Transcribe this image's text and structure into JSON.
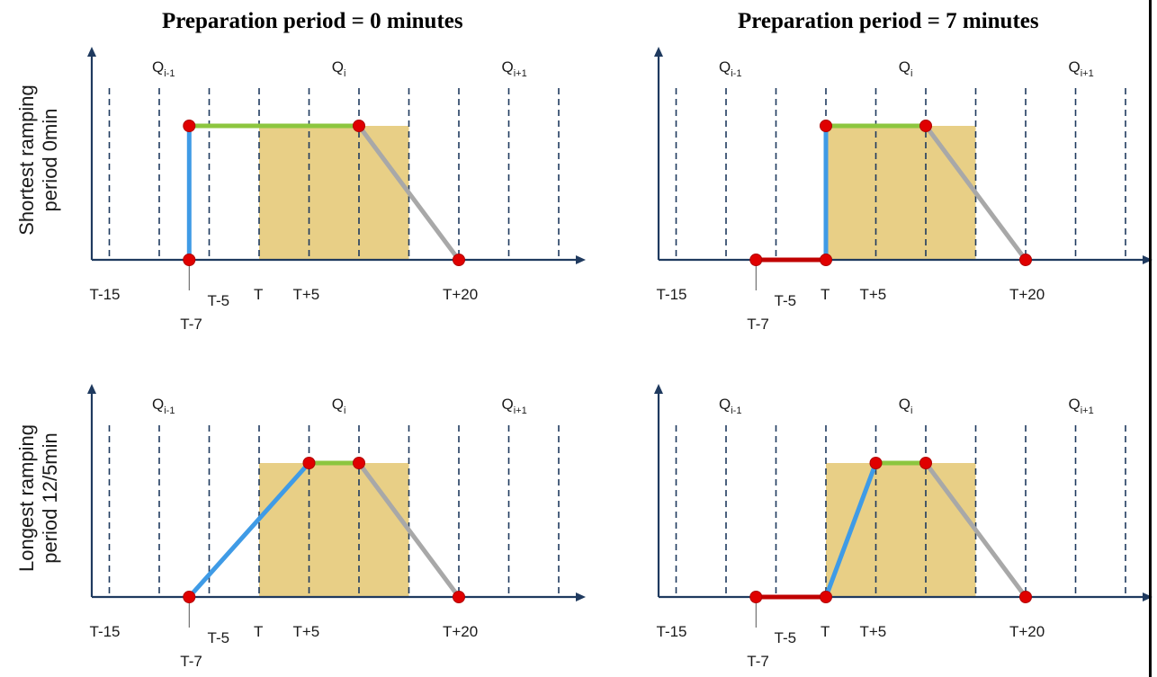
{
  "titles": {
    "left": "Preparation period = 0 minutes",
    "right": "Preparation period = 7 minutes"
  },
  "row_labels": {
    "top": [
      "Shortest ramping",
      "period 0min"
    ],
    "bottom": [
      "Longest ramping",
      "period 12/5min"
    ]
  },
  "quarters": [
    {
      "base": "Q",
      "sub": "i-1"
    },
    {
      "base": "Q",
      "sub": "i"
    },
    {
      "base": "Q",
      "sub": "i+1"
    }
  ],
  "time_labels": [
    "T-15",
    "T-7",
    "T-5",
    "T",
    "T+5",
    "T+20"
  ],
  "colors": {
    "axis": "#1f3a5f",
    "grid": "#1f3a5f",
    "delivery_block": "#e8cf86",
    "ramp_up": "#3f9be6",
    "plateau": "#8cc63f",
    "ramp_down": "#a8a8a8",
    "preparation": "#c00000",
    "point": "#e00000"
  },
  "panels": [
    {
      "id": "top-left",
      "preparation_min": 0,
      "ramp_up": [
        [
          -7,
          0
        ],
        [
          -7,
          1
        ]
      ],
      "plateau": [
        [
          -7,
          1
        ],
        [
          10,
          1
        ]
      ],
      "ramp_down": [
        [
          10,
          1
        ],
        [
          20,
          0
        ]
      ],
      "preparation": [],
      "points": [
        [
          -7,
          0
        ],
        [
          -7,
          1
        ],
        [
          10,
          1
        ],
        [
          20,
          0
        ]
      ]
    },
    {
      "id": "top-right",
      "preparation_min": 7,
      "ramp_up": [
        [
          0,
          0
        ],
        [
          0,
          1
        ]
      ],
      "plateau": [
        [
          0,
          1
        ],
        [
          10,
          1
        ]
      ],
      "ramp_down": [
        [
          10,
          1
        ],
        [
          20,
          0
        ]
      ],
      "preparation": [
        [
          -7,
          0
        ],
        [
          0,
          0
        ]
      ],
      "points": [
        [
          -7,
          0
        ],
        [
          0,
          0
        ],
        [
          0,
          1
        ],
        [
          10,
          1
        ],
        [
          20,
          0
        ]
      ]
    },
    {
      "id": "bottom-left",
      "preparation_min": 0,
      "ramp_up": [
        [
          -7,
          0
        ],
        [
          5,
          1
        ]
      ],
      "plateau": [
        [
          5,
          1
        ],
        [
          10,
          1
        ]
      ],
      "ramp_down": [
        [
          10,
          1
        ],
        [
          20,
          0
        ]
      ],
      "preparation": [],
      "points": [
        [
          -7,
          0
        ],
        [
          5,
          1
        ],
        [
          10,
          1
        ],
        [
          20,
          0
        ]
      ]
    },
    {
      "id": "bottom-right",
      "preparation_min": 7,
      "ramp_up": [
        [
          0,
          0
        ],
        [
          5,
          1
        ]
      ],
      "plateau": [
        [
          5,
          1
        ],
        [
          10,
          1
        ]
      ],
      "ramp_down": [
        [
          10,
          1
        ],
        [
          20,
          0
        ]
      ],
      "preparation": [
        [
          -7,
          0
        ],
        [
          0,
          0
        ]
      ],
      "points": [
        [
          -7,
          0
        ],
        [
          0,
          0
        ],
        [
          5,
          1
        ],
        [
          10,
          1
        ],
        [
          20,
          0
        ]
      ]
    }
  ]
}
